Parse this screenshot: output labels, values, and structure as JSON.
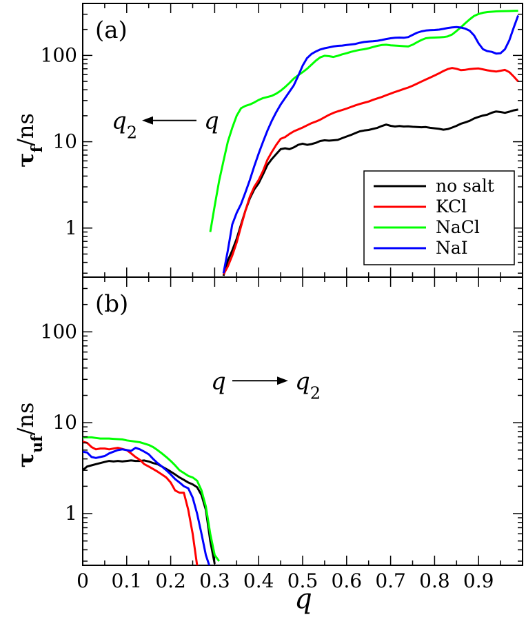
{
  "chart_data": [
    {
      "type": "line",
      "panel_label": "(a)",
      "ylabel_main": "τ",
      "ylabel_sub": "f",
      "ylabel_unit": "/ns",
      "xlabel": "q",
      "yscale": "log",
      "xlim": [
        0,
        1.0
      ],
      "ylim": [
        0.27,
        400
      ],
      "yticks": [
        1,
        10,
        100
      ],
      "ytick_labels": [
        "1",
        "10",
        "100"
      ],
      "annotation": {
        "left": "q",
        "left_sub": "2",
        "right": "q",
        "arrow": "left"
      },
      "legend": {
        "position": "lower-right",
        "entries": [
          "no salt",
          "KCl",
          "NaCl",
          "NaI"
        ]
      },
      "series": [
        {
          "name": "no salt",
          "color": "#000000",
          "x": [
            0.32,
            0.33,
            0.34,
            0.35,
            0.36,
            0.37,
            0.38,
            0.39,
            0.4,
            0.41,
            0.42,
            0.43,
            0.44,
            0.45,
            0.46,
            0.47,
            0.48,
            0.49,
            0.5,
            0.51,
            0.52,
            0.53,
            0.54,
            0.55,
            0.56,
            0.57,
            0.58,
            0.59,
            0.6,
            0.61,
            0.62,
            0.63,
            0.64,
            0.65,
            0.66,
            0.67,
            0.68,
            0.69,
            0.7,
            0.71,
            0.72,
            0.73,
            0.74,
            0.75,
            0.76,
            0.77,
            0.78,
            0.79,
            0.8,
            0.81,
            0.82,
            0.83,
            0.84,
            0.85,
            0.86,
            0.87,
            0.88,
            0.89,
            0.9,
            0.91,
            0.92,
            0.93,
            0.94,
            0.95,
            0.96,
            0.97,
            0.98,
            0.99
          ],
          "y": [
            0.28,
            0.42,
            0.55,
            0.75,
            1.1,
            1.6,
            2.2,
            2.8,
            3.3,
            4.2,
            5.4,
            6.3,
            7.2,
            8.2,
            8.4,
            8.2,
            8.6,
            9.2,
            9.5,
            9.2,
            9.4,
            9.7,
            10.2,
            10.4,
            10.3,
            10.4,
            10.5,
            11.0,
            11.5,
            12.0,
            12.6,
            13.2,
            13.5,
            13.7,
            14.1,
            14.5,
            15.2,
            15.8,
            15.3,
            15.0,
            15.2,
            15.0,
            15.1,
            14.9,
            14.8,
            14.7,
            14.8,
            14.5,
            14.3,
            14.1,
            13.8,
            14.0,
            14.6,
            15.3,
            16.2,
            16.8,
            17.5,
            18.6,
            19.4,
            20.1,
            20.6,
            21.7,
            22.4,
            22.1,
            21.6,
            22.3,
            23.1,
            23.6
          ]
        },
        {
          "name": "KCl",
          "color": "#ff0000",
          "x": [
            0.32,
            0.33,
            0.34,
            0.35,
            0.36,
            0.37,
            0.38,
            0.39,
            0.4,
            0.41,
            0.42,
            0.43,
            0.44,
            0.45,
            0.46,
            0.47,
            0.48,
            0.49,
            0.5,
            0.51,
            0.52,
            0.53,
            0.54,
            0.55,
            0.56,
            0.57,
            0.58,
            0.59,
            0.6,
            0.61,
            0.62,
            0.63,
            0.64,
            0.65,
            0.66,
            0.67,
            0.68,
            0.69,
            0.7,
            0.71,
            0.72,
            0.73,
            0.74,
            0.75,
            0.76,
            0.77,
            0.78,
            0.79,
            0.8,
            0.81,
            0.82,
            0.83,
            0.84,
            0.85,
            0.86,
            0.87,
            0.88,
            0.89,
            0.9,
            0.91,
            0.92,
            0.93,
            0.94,
            0.95,
            0.96,
            0.97,
            0.98,
            0.99
          ],
          "y": [
            0.29,
            0.36,
            0.48,
            0.68,
            1.05,
            1.6,
            2.3,
            3.0,
            3.6,
            4.6,
            6.2,
            7.6,
            9.2,
            10.8,
            11.3,
            12.3,
            13.2,
            13.9,
            14.6,
            15.5,
            16.4,
            17.1,
            18.0,
            19.2,
            20.5,
            21.6,
            22.5,
            23.3,
            24.2,
            25.3,
            26.4,
            27.4,
            28.3,
            29.2,
            30.6,
            31.8,
            33.0,
            34.6,
            36.1,
            37.7,
            39.2,
            40.8,
            42.4,
            44.5,
            47.0,
            49.8,
            52.5,
            55.4,
            58.5,
            62.0,
            66.0,
            69.5,
            71.5,
            70.0,
            67.5,
            68.2,
            69.5,
            70.2,
            70.6,
            69.0,
            67.2,
            66.0,
            65.0,
            66.5,
            68.0,
            64.0,
            57.0,
            50.0
          ]
        },
        {
          "name": "NaCl",
          "color": "#00ff00",
          "x": [
            0.29,
            0.3,
            0.31,
            0.32,
            0.33,
            0.34,
            0.35,
            0.36,
            0.37,
            0.38,
            0.39,
            0.4,
            0.41,
            0.42,
            0.43,
            0.44,
            0.45,
            0.46,
            0.47,
            0.48,
            0.49,
            0.5,
            0.51,
            0.52,
            0.53,
            0.54,
            0.55,
            0.56,
            0.57,
            0.58,
            0.59,
            0.6,
            0.61,
            0.62,
            0.63,
            0.64,
            0.65,
            0.66,
            0.67,
            0.68,
            0.69,
            0.7,
            0.71,
            0.72,
            0.73,
            0.74,
            0.75,
            0.76,
            0.77,
            0.78,
            0.79,
            0.8,
            0.81,
            0.82,
            0.83,
            0.84,
            0.85,
            0.86,
            0.87,
            0.88,
            0.89,
            0.9,
            0.91,
            0.92,
            0.93,
            0.94,
            0.95,
            0.96,
            0.97,
            0.98,
            0.99
          ],
          "y": [
            0.9,
            1.8,
            3.5,
            6.0,
            10.0,
            14.5,
            20.0,
            24.5,
            26.0,
            27.0,
            28.5,
            30.5,
            32.0,
            33.0,
            34.0,
            36.0,
            39.0,
            43.0,
            48.0,
            54.0,
            59.0,
            64.0,
            70.0,
            78.0,
            87.0,
            95.0,
            99.0,
            98.0,
            96.0,
            99.0,
            103.0,
            106.0,
            110.0,
            113.0,
            116.0,
            118.0,
            121.0,
            125.0,
            129.0,
            132.0,
            133.0,
            131.0,
            130.0,
            129.0,
            128.0,
            127.0,
            133.0,
            142.0,
            151.0,
            158.0,
            160.0,
            161.0,
            162.0,
            163.0,
            166.0,
            175.0,
            192.0,
            212.0,
            237.0,
            262.0,
            287.0,
            302.0,
            312.0,
            318.0,
            321.0,
            324.0,
            325.0,
            326.0,
            327.0,
            328.0,
            329.0
          ]
        },
        {
          "name": "NaI",
          "color": "#0000ff",
          "x": [
            0.32,
            0.33,
            0.34,
            0.35,
            0.36,
            0.37,
            0.38,
            0.39,
            0.4,
            0.41,
            0.42,
            0.43,
            0.44,
            0.45,
            0.46,
            0.47,
            0.48,
            0.49,
            0.5,
            0.51,
            0.52,
            0.53,
            0.54,
            0.55,
            0.56,
            0.57,
            0.58,
            0.59,
            0.6,
            0.61,
            0.62,
            0.63,
            0.64,
            0.65,
            0.66,
            0.67,
            0.68,
            0.69,
            0.7,
            0.71,
            0.72,
            0.73,
            0.74,
            0.75,
            0.76,
            0.77,
            0.78,
            0.79,
            0.8,
            0.81,
            0.82,
            0.83,
            0.84,
            0.85,
            0.86,
            0.87,
            0.88,
            0.89,
            0.9,
            0.91,
            0.92,
            0.93,
            0.94,
            0.95,
            0.96,
            0.97,
            0.98,
            0.99
          ],
          "y": [
            0.3,
            0.55,
            1.1,
            1.5,
            1.9,
            2.6,
            3.6,
            5.2,
            7.3,
            10.0,
            13.5,
            17.5,
            22.0,
            27.0,
            32.0,
            38.0,
            45.0,
            58.0,
            76.0,
            93.0,
            104.0,
            111.0,
            117.0,
            121.0,
            124.0,
            127.0,
            129.0,
            130.0,
            132.0,
            134.0,
            136.0,
            140.0,
            143.0,
            145.0,
            146.0,
            148.0,
            151.0,
            155.0,
            158.0,
            160.0,
            161.0,
            160.0,
            163.0,
            173.0,
            183.0,
            190.0,
            194.0,
            196.0,
            197.0,
            199.0,
            203.0,
            208.0,
            211.0,
            213.0,
            210.0,
            204.0,
            193.0,
            170.0,
            138.0,
            118.0,
            112.0,
            110.0,
            105.0,
            106.0,
            118.0,
            150.0,
            210.0,
            290.0
          ]
        }
      ]
    },
    {
      "type": "line",
      "panel_label": "(b)",
      "ylabel_main": "τ",
      "ylabel_sub": "uf",
      "ylabel_unit": "/ns",
      "xlabel": "q",
      "yscale": "log",
      "xlim": [
        0,
        1.0
      ],
      "ylim": [
        0.27,
        400
      ],
      "yticks": [
        1,
        10,
        100
      ],
      "ytick_labels": [
        "1",
        "10",
        "100"
      ],
      "xticks": [
        0,
        0.1,
        0.2,
        0.3,
        0.4,
        0.5,
        0.6,
        0.7,
        0.8,
        0.9
      ],
      "xtick_labels": [
        "0",
        "0.1",
        "0.2",
        "0.3",
        "0.4",
        "0.5",
        "0.6",
        "0.7",
        "0.8",
        "0.9"
      ],
      "annotation": {
        "left": "q",
        "right": "q",
        "right_sub": "2",
        "arrow": "right"
      },
      "series": [
        {
          "name": "no salt",
          "color": "#000000",
          "x": [
            0.0,
            0.01,
            0.02,
            0.03,
            0.04,
            0.05,
            0.06,
            0.07,
            0.08,
            0.09,
            0.1,
            0.11,
            0.12,
            0.13,
            0.14,
            0.15,
            0.16,
            0.17,
            0.18,
            0.19,
            0.2,
            0.21,
            0.22,
            0.23,
            0.24,
            0.25,
            0.26,
            0.27,
            0.28,
            0.29,
            0.3
          ],
          "y": [
            3.0,
            3.3,
            3.4,
            3.5,
            3.6,
            3.7,
            3.8,
            3.75,
            3.8,
            3.75,
            3.8,
            3.85,
            3.8,
            3.8,
            3.85,
            3.75,
            3.6,
            3.5,
            3.3,
            3.1,
            2.9,
            2.7,
            2.5,
            2.35,
            2.2,
            2.1,
            1.95,
            1.6,
            1.1,
            0.5,
            0.28
          ]
        },
        {
          "name": "KCl",
          "color": "#ff0000",
          "x": [
            0.0,
            0.01,
            0.02,
            0.03,
            0.04,
            0.05,
            0.06,
            0.07,
            0.08,
            0.09,
            0.1,
            0.11,
            0.12,
            0.13,
            0.14,
            0.15,
            0.16,
            0.17,
            0.18,
            0.19,
            0.2,
            0.21,
            0.22,
            0.23,
            0.24,
            0.25,
            0.26,
            0.27
          ],
          "y": [
            6.2,
            6.0,
            5.4,
            5.1,
            5.2,
            5.2,
            5.1,
            5.2,
            5.3,
            5.15,
            5.0,
            4.6,
            4.2,
            3.9,
            3.5,
            3.3,
            3.1,
            2.9,
            2.7,
            2.5,
            2.2,
            1.8,
            1.7,
            1.7,
            1.1,
            0.6,
            0.27,
            0.25
          ]
        },
        {
          "name": "NaCl",
          "color": "#00ff00",
          "x": [
            0.0,
            0.01,
            0.02,
            0.03,
            0.04,
            0.05,
            0.06,
            0.07,
            0.08,
            0.09,
            0.1,
            0.11,
            0.12,
            0.13,
            0.14,
            0.15,
            0.16,
            0.17,
            0.18,
            0.19,
            0.2,
            0.21,
            0.22,
            0.23,
            0.24,
            0.25,
            0.26,
            0.27,
            0.28,
            0.29,
            0.3,
            0.31
          ],
          "y": [
            6.9,
            6.9,
            6.9,
            6.8,
            6.7,
            6.7,
            6.7,
            6.65,
            6.6,
            6.55,
            6.4,
            6.3,
            6.2,
            6.1,
            5.9,
            5.7,
            5.4,
            5.0,
            4.6,
            4.2,
            3.8,
            3.4,
            3.0,
            2.8,
            2.6,
            2.5,
            2.3,
            1.8,
            1.2,
            0.6,
            0.35,
            0.3
          ]
        },
        {
          "name": "NaI",
          "color": "#0000ff",
          "x": [
            0.0,
            0.01,
            0.02,
            0.03,
            0.04,
            0.05,
            0.06,
            0.07,
            0.08,
            0.09,
            0.1,
            0.11,
            0.12,
            0.13,
            0.14,
            0.15,
            0.16,
            0.17,
            0.18,
            0.19,
            0.2,
            0.21,
            0.22,
            0.23,
            0.24,
            0.25,
            0.26,
            0.27,
            0.28,
            0.29
          ],
          "y": [
            4.8,
            4.7,
            4.2,
            4.1,
            4.2,
            4.3,
            4.6,
            4.8,
            5.0,
            5.1,
            5.0,
            4.9,
            5.3,
            5.1,
            4.8,
            4.5,
            4.0,
            3.6,
            3.3,
            3.0,
            2.7,
            2.4,
            2.2,
            2.0,
            1.9,
            1.5,
            1.0,
            0.6,
            0.35,
            0.25
          ]
        }
      ]
    }
  ]
}
